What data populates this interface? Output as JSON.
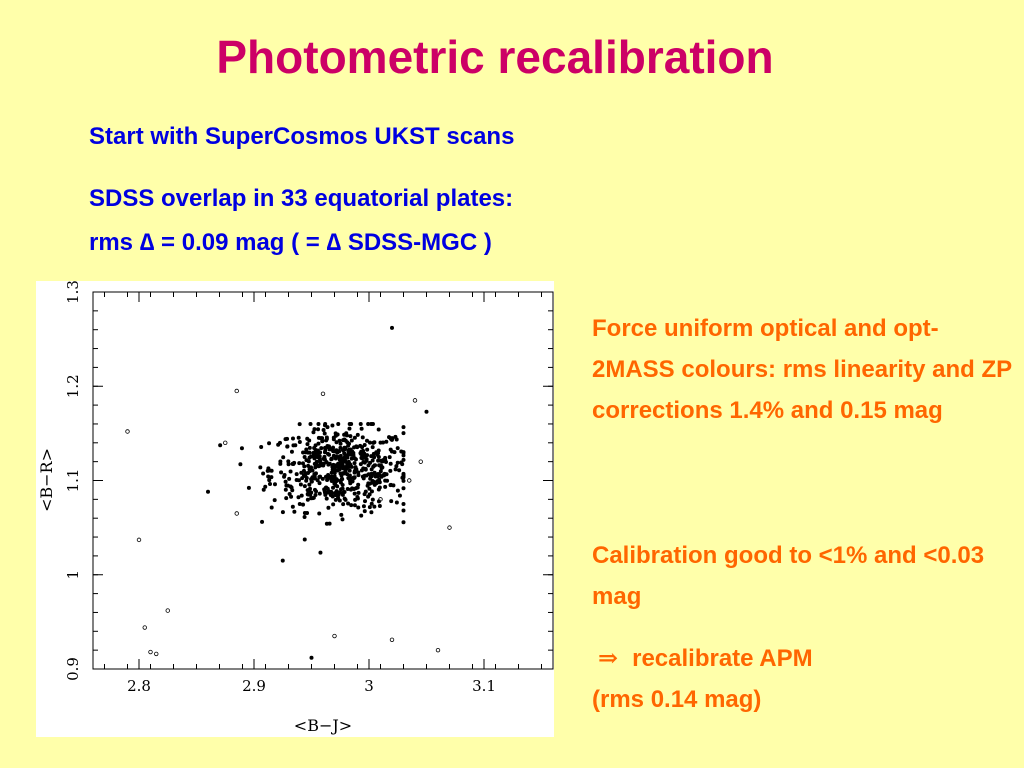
{
  "title": "Photometric recalibration",
  "left_text": {
    "line1": "Start with SuperCosmos UKST scans",
    "line2": "SDSS overlap in 33 equatorial plates:",
    "line3": "rms ∆ = 0.09 mag  ( = ∆ SDSS-MGC )"
  },
  "right_text": {
    "block1": "Force uniform optical and opt-2MASS colours: rms linearity and ZP corrections 1.4% and 0.15 mag",
    "block2": "Calibration good to <1% and <0.03 mag",
    "block3_arrow": "⇒",
    "block3_line1": "recalibrate APM",
    "block3_line2": "(rms 0.14 mag)"
  },
  "chart_data": {
    "type": "scatter",
    "xlabel": "<B−J>",
    "ylabel": "<B−R>",
    "xlim": [
      2.76,
      3.16
    ],
    "ylim": [
      0.9,
      1.3
    ],
    "xticks": [
      2.8,
      2.9,
      3,
      3.1
    ],
    "xtick_labels": [
      "2.8",
      "2.9",
      "3",
      "3.1"
    ],
    "yticks": [
      0.9,
      1,
      1.1,
      1.2,
      1.3
    ],
    "ytick_labels": [
      "0.9",
      "1",
      "1.1",
      "1.2",
      "1.3"
    ],
    "grid": false,
    "series": [
      {
        "marker": "filled",
        "approx_count": 600,
        "center": [
          2.975,
          1.112
        ],
        "spread": [
          0.03,
          0.022
        ],
        "x_range": [
          2.87,
          3.03
        ],
        "y_range": [
          1.01,
          1.16
        ],
        "outliers": [
          {
            "x": 3.02,
            "y": 1.262
          },
          {
            "x": 3.05,
            "y": 1.173
          },
          {
            "x": 2.86,
            "y": 1.088
          },
          {
            "x": 2.925,
            "y": 1.015
          },
          {
            "x": 2.95,
            "y": 0.912
          }
        ]
      },
      {
        "marker": "open",
        "points": [
          {
            "x": 2.79,
            "y": 1.152
          },
          {
            "x": 2.8,
            "y": 1.037
          },
          {
            "x": 2.805,
            "y": 0.944
          },
          {
            "x": 2.81,
            "y": 0.918
          },
          {
            "x": 2.815,
            "y": 0.916
          },
          {
            "x": 2.825,
            "y": 0.962
          },
          {
            "x": 2.875,
            "y": 1.14
          },
          {
            "x": 2.885,
            "y": 1.195
          },
          {
            "x": 2.96,
            "y": 1.192
          },
          {
            "x": 2.97,
            "y": 0.935
          },
          {
            "x": 3.02,
            "y": 0.931
          },
          {
            "x": 3.04,
            "y": 1.185
          },
          {
            "x": 3.06,
            "y": 0.92
          },
          {
            "x": 3.07,
            "y": 1.05
          },
          {
            "x": 3.035,
            "y": 1.1
          },
          {
            "x": 3.045,
            "y": 1.12
          },
          {
            "x": 3.01,
            "y": 1.08
          },
          {
            "x": 2.885,
            "y": 1.065
          }
        ]
      }
    ]
  }
}
